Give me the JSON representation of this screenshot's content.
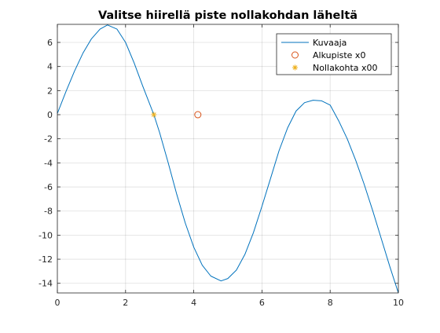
{
  "chart_data": {
    "type": "line",
    "title": "Valitse hiirellä piste nollakohdan läheltä",
    "xlabel": "",
    "ylabel": "",
    "xlim": [
      0,
      10
    ],
    "ylim": [
      -14.8,
      7.5
    ],
    "xticks": [
      0,
      2,
      4,
      6,
      8,
      10
    ],
    "xtick_labels": [
      "0",
      "2",
      "4",
      "6",
      "8",
      "10"
    ],
    "yticks": [
      6,
      4,
      2,
      0,
      -2,
      -4,
      -6,
      -8,
      -10,
      -12,
      -14
    ],
    "ytick_labels": [
      "6",
      "4",
      "2",
      "0",
      "-2",
      "-4",
      "-6",
      "-8",
      "-10",
      "-12",
      "-14"
    ],
    "grid": true,
    "legend_position": "top-right",
    "series": [
      {
        "name": "Kuvaaja",
        "kind": "line",
        "color": "#0072BD",
        "x": [
          0,
          0.25,
          0.5,
          0.75,
          1.0,
          1.25,
          1.47,
          1.75,
          2.0,
          2.25,
          2.5,
          2.83,
          3.0,
          3.25,
          3.5,
          3.75,
          4.0,
          4.25,
          4.5,
          4.8,
          5.0,
          5.25,
          5.5,
          5.75,
          6.0,
          6.25,
          6.5,
          6.75,
          7.0,
          7.25,
          7.5,
          7.75,
          8.0,
          8.25,
          8.5,
          8.75,
          9.0,
          9.25,
          9.5,
          9.75,
          10.0
        ],
        "y": [
          0.1,
          1.9,
          3.6,
          5.1,
          6.3,
          7.1,
          7.45,
          7.1,
          6.0,
          4.3,
          2.4,
          0.0,
          -1.5,
          -4.0,
          -6.6,
          -9.0,
          -11.0,
          -12.5,
          -13.4,
          -13.8,
          -13.6,
          -12.9,
          -11.6,
          -9.8,
          -7.6,
          -5.3,
          -3.0,
          -1.1,
          0.3,
          1.0,
          1.2,
          1.15,
          0.8,
          -0.5,
          -2.0,
          -3.8,
          -5.8,
          -8.0,
          -10.3,
          -12.6,
          -14.8
        ]
      },
      {
        "name": "Alkupiste x0",
        "kind": "marker",
        "marker": "circle",
        "color": "#D95319",
        "x": [
          4.12
        ],
        "y": [
          0
        ]
      },
      {
        "name": "Nollakohta x00",
        "kind": "marker",
        "marker": "asterisk",
        "color": "#EDB120",
        "x": [
          2.83
        ],
        "y": [
          0
        ]
      }
    ]
  }
}
